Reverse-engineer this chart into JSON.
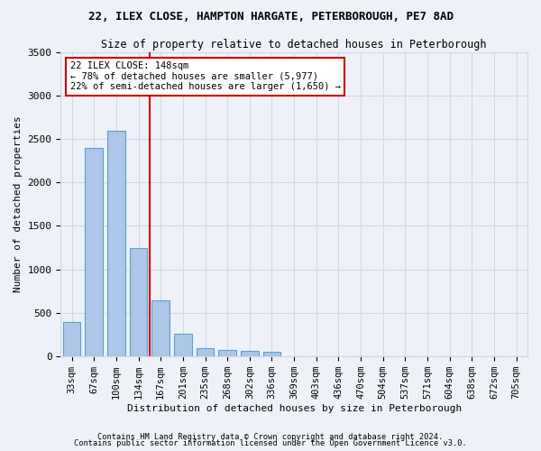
{
  "title_line1": "22, ILEX CLOSE, HAMPTON HARGATE, PETERBOROUGH, PE7 8AD",
  "title_line2": "Size of property relative to detached houses in Peterborough",
  "xlabel": "Distribution of detached houses by size in Peterborough",
  "ylabel": "Number of detached properties",
  "footer_line1": "Contains HM Land Registry data © Crown copyright and database right 2024.",
  "footer_line2": "Contains public sector information licensed under the Open Government Licence v3.0.",
  "categories": [
    "33sqm",
    "67sqm",
    "100sqm",
    "134sqm",
    "167sqm",
    "201sqm",
    "235sqm",
    "268sqm",
    "302sqm",
    "336sqm",
    "369sqm",
    "403sqm",
    "436sqm",
    "470sqm",
    "504sqm",
    "537sqm",
    "571sqm",
    "604sqm",
    "638sqm",
    "672sqm",
    "705sqm"
  ],
  "values": [
    390,
    2400,
    2600,
    1240,
    640,
    255,
    95,
    65,
    60,
    45,
    0,
    0,
    0,
    0,
    0,
    0,
    0,
    0,
    0,
    0,
    0
  ],
  "bar_color": "#aec6e8",
  "bar_edge_color": "#5a9fd4",
  "grid_color": "#d0d8e8",
  "background_color": "#eef2f8",
  "vline_x_index": 3.5,
  "vline_color": "#cc0000",
  "annotation_text": "22 ILEX CLOSE: 148sqm\n← 78% of detached houses are smaller (5,977)\n22% of semi-detached houses are larger (1,650) →",
  "annotation_box_color": "#ffffff",
  "annotation_box_edge": "#cc0000",
  "ylim": [
    0,
    3500
  ],
  "yticks": [
    0,
    500,
    1000,
    1500,
    2000,
    2500,
    3000,
    3500
  ]
}
